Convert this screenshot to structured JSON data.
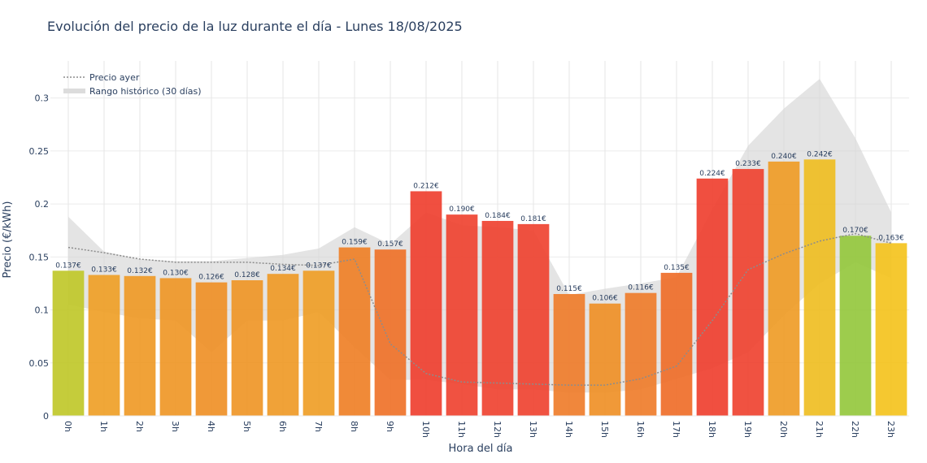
{
  "chart_data": {
    "type": "bar",
    "title": "Evolución del precio de la luz durante el día - Lunes 18/08/2025",
    "xlabel": "Hora del día",
    "ylabel": "Precio (€/kWh)",
    "ylim": [
      0,
      0.335
    ],
    "yticks": [
      0,
      0.05,
      0.1,
      0.15,
      0.2,
      0.25,
      0.3
    ],
    "ytick_labels": [
      "0",
      "0.05",
      "0.1",
      "0.15",
      "0.2",
      "0.25",
      "0.3"
    ],
    "grid": true,
    "legend_position": "top-left",
    "categories": [
      "0h",
      "1h",
      "2h",
      "3h",
      "4h",
      "5h",
      "6h",
      "7h",
      "8h",
      "9h",
      "10h",
      "11h",
      "12h",
      "13h",
      "14h",
      "15h",
      "16h",
      "17h",
      "18h",
      "19h",
      "20h",
      "21h",
      "22h",
      "23h"
    ],
    "series": [
      {
        "type": "bar",
        "values": [
          0.137,
          0.133,
          0.132,
          0.13,
          0.126,
          0.128,
          0.134,
          0.137,
          0.159,
          0.157,
          0.212,
          0.19,
          0.184,
          0.181,
          0.115,
          0.106,
          0.116,
          0.135,
          0.224,
          0.233,
          0.24,
          0.242,
          0.17,
          0.163
        ],
        "labels": [
          "0.137€",
          "0.133€",
          "0.132€",
          "0.130€",
          "0.126€",
          "0.128€",
          "0.134€",
          "0.137€",
          "0.159€",
          "0.157€",
          "0.212€",
          "0.190€",
          "0.184€",
          "0.181€",
          "0.115€",
          "0.106€",
          "0.116€",
          "0.135€",
          "0.224€",
          "0.233€",
          "0.240€",
          "0.242€",
          "0.170€",
          "0.163€"
        ],
        "colors": [
          "#bfc726",
          "#ee9d22",
          "#ee9822",
          "#ee9522",
          "#ee8e22",
          "#ee9322",
          "#ee9822",
          "#ee9c22",
          "#ee7d22",
          "#ee6f25",
          "#ee3c2b",
          "#ee3f2c",
          "#ee3f2c",
          "#ee3f2c",
          "#ee7a27",
          "#ee8e22",
          "#ee7a27",
          "#ee6a25",
          "#ee3c2b",
          "#ee3f2c",
          "#ee9a22",
          "#eebd1e",
          "#92c63a",
          "#f4c219"
        ]
      },
      {
        "type": "line",
        "name": "Precio ayer",
        "style": "dotted",
        "color": "#8c8c8c",
        "values": [
          0.159,
          0.154,
          0.148,
          0.145,
          0.145,
          0.145,
          0.143,
          0.142,
          0.148,
          0.068,
          0.04,
          0.032,
          0.031,
          0.03,
          0.029,
          0.029,
          0.035,
          0.047,
          0.09,
          0.138,
          0.153,
          0.165,
          0.172,
          0.163
        ]
      },
      {
        "type": "area",
        "name": "Rango histórico (30 días)",
        "color": "#d3d3d3",
        "upper": [
          0.188,
          0.155,
          0.148,
          0.146,
          0.146,
          0.149,
          0.152,
          0.158,
          0.178,
          0.162,
          0.192,
          0.18,
          0.178,
          0.175,
          0.114,
          0.12,
          0.125,
          0.131,
          0.195,
          0.255,
          0.29,
          0.318,
          0.262,
          0.192
        ],
        "lower": [
          0.105,
          0.098,
          0.092,
          0.09,
          0.06,
          0.09,
          0.09,
          0.098,
          0.065,
          0.034,
          0.034,
          0.03,
          0.025,
          0.025,
          0.022,
          0.022,
          0.025,
          0.035,
          0.045,
          0.06,
          0.095,
          0.125,
          0.145,
          0.13
        ]
      }
    ]
  }
}
